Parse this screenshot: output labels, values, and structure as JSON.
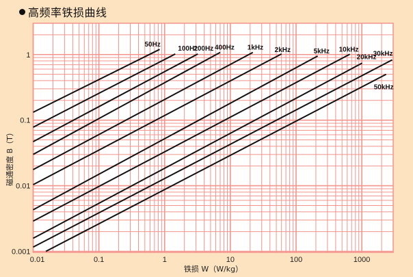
{
  "title": "高频率铁损曲线",
  "chart_data": {
    "type": "line",
    "title": "高频率铁损曲线",
    "xlabel": "铁损  W（W/kg）",
    "ylabel": "磁通密度  B（T）",
    "xscale": "log",
    "yscale": "log",
    "xlim": [
      0.01,
      3000
    ],
    "ylim": [
      0.001,
      3
    ],
    "xticks": [
      0.01,
      0.1,
      1,
      10,
      100,
      1000
    ],
    "xtick_labels": [
      "0.01",
      "0.1",
      "1",
      "10",
      "100",
      "1000"
    ],
    "yticks": [
      0.001,
      0.01,
      0.1,
      1
    ],
    "ytick_labels": [
      "0.001",
      "0.01",
      "0.1",
      "1"
    ],
    "grid": true,
    "colors": {
      "background": "#fde3bf",
      "plot": "#ffffff",
      "grid": "#f4948c",
      "line": "#111111"
    },
    "series": [
      {
        "name": "50Hz",
        "x": [
          0.01,
          0.84
        ],
        "y": [
          0.132,
          1.2
        ]
      },
      {
        "name": "100Hz",
        "x": [
          0.01,
          1.45
        ],
        "y": [
          0.078,
          1.02
        ]
      },
      {
        "name": "200Hz",
        "x": [
          0.01,
          3.2
        ],
        "y": [
          0.047,
          1.02
        ]
      },
      {
        "name": "400Hz",
        "x": [
          0.01,
          7.0
        ],
        "y": [
          0.03,
          1.08
        ]
      },
      {
        "name": "1kHz",
        "x": [
          0.01,
          22
        ],
        "y": [
          0.0176,
          1.08
        ]
      },
      {
        "name": "2kHz",
        "x": [
          0.01,
          60
        ],
        "y": [
          0.0104,
          1.02
        ]
      },
      {
        "name": "5kHz",
        "x": [
          0.01,
          213
        ],
        "y": [
          0.0043,
          0.95
        ]
      },
      {
        "name": "10kHz",
        "x": [
          0.01,
          657
        ],
        "y": [
          0.0029,
          1.01
        ]
      },
      {
        "name": "20kHz",
        "x": [
          0.01,
          1010
        ],
        "y": [
          0.00158,
          0.74
        ]
      },
      {
        "name": "30kHz",
        "x": [
          0.01,
          2900
        ],
        "y": [
          0.00116,
          0.83
        ]
      },
      {
        "name": "50kHz",
        "x": [
          0.0156,
          2345
        ],
        "y": [
          0.001,
          0.5
        ]
      }
    ]
  }
}
